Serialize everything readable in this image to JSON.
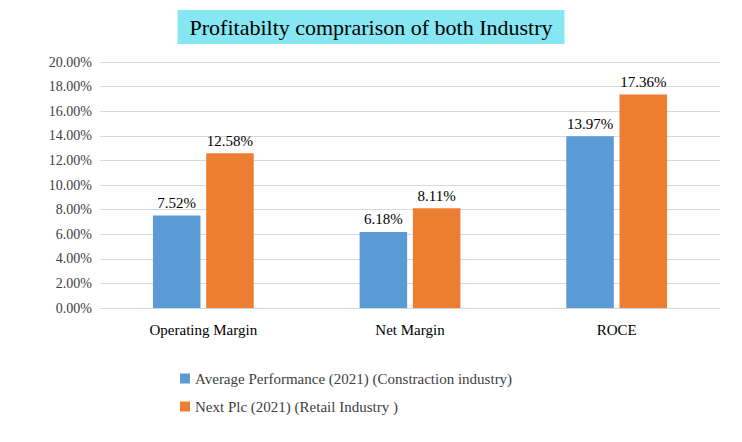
{
  "chart_data": {
    "type": "bar",
    "title": "Profitabilty comprarison of both Industry",
    "categories": [
      "Operating Margin",
      "Net Margin",
      "ROCE"
    ],
    "series": [
      {
        "name": "Average Performance (2021) (Constraction industry)",
        "color": "#5b9bd5",
        "values": [
          7.52,
          6.18,
          13.97
        ],
        "value_labels": [
          "7.52%",
          "6.18%",
          "13.97%"
        ]
      },
      {
        "name": "Next Plc (2021) (Retail Industry )",
        "color": "#ed7d31",
        "values": [
          12.58,
          8.11,
          17.36
        ],
        "value_labels": [
          "12.58%",
          "8.11%",
          "17.36%"
        ]
      }
    ],
    "ylim": [
      0,
      20
    ],
    "yticks": [
      {
        "value": 0,
        "label": "0.00%"
      },
      {
        "value": 2,
        "label": "2.00%"
      },
      {
        "value": 4,
        "label": "4.00%"
      },
      {
        "value": 6,
        "label": "6.00%"
      },
      {
        "value": 8,
        "label": "8.00%"
      },
      {
        "value": 10,
        "label": "10.00%"
      },
      {
        "value": 12,
        "label": "12.00%"
      },
      {
        "value": 14,
        "label": "14.00%"
      },
      {
        "value": 16,
        "label": "16.00%"
      },
      {
        "value": 18,
        "label": "18.00%"
      },
      {
        "value": 20,
        "label": "20.00%"
      }
    ],
    "grid": true,
    "legend": "bottom",
    "data_labels": true
  }
}
